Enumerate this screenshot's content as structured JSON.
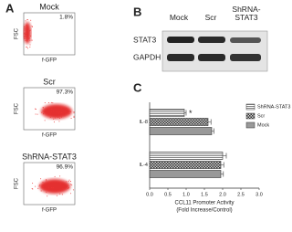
{
  "panels": {
    "a": {
      "label": "A",
      "plots": [
        {
          "title": "Mock",
          "percent": "1.8%",
          "y_label": "FSC",
          "x_label": "f-GFP"
        },
        {
          "title": "Scr",
          "percent": "97.3%",
          "y_label": "FSC",
          "x_label": "f-GFP"
        },
        {
          "title": "ShRNA-STAT3",
          "percent": "96.9%",
          "y_label": "FSC",
          "x_label": "f-GFP"
        }
      ]
    },
    "b": {
      "label": "B",
      "lanes": [
        "Mock",
        "Scr",
        "ShRNA-STAT3"
      ],
      "rows": [
        "STAT3",
        "GAPDH"
      ]
    }
  },
  "chart_data": {
    "type": "bar",
    "orientation": "horizontal",
    "panel_label": "C",
    "x_label": [
      "CCL11 Promoter Activity",
      "(Fold Increase/Control)"
    ],
    "categories": [
      "IL-8",
      "IL-4"
    ],
    "series": [
      {
        "name": "ShRNA-STAT3",
        "color": "#ffffff",
        "values": [
          0.95,
          2.0
        ],
        "errors": [
          0.05,
          0.1
        ]
      },
      {
        "name": "Scr",
        "color": "#cfcfcf",
        "values": [
          1.6,
          1.95
        ],
        "errors": [
          0.08,
          0.08
        ]
      },
      {
        "name": "Mock",
        "color": "#999999",
        "values": [
          1.7,
          1.95
        ],
        "errors": [
          0.06,
          0.07
        ]
      }
    ],
    "annotation": "*",
    "xlim": [
      0,
      3
    ],
    "xticks": [
      {
        "value": 0,
        "label": "0.0"
      },
      0.5,
      {
        "value": 1,
        "label": "1.0"
      },
      1.5,
      {
        "value": 2,
        "label": "2.0"
      },
      2.5,
      {
        "value": 3,
        "label": "3.0"
      }
    ],
    "legend": "right"
  }
}
